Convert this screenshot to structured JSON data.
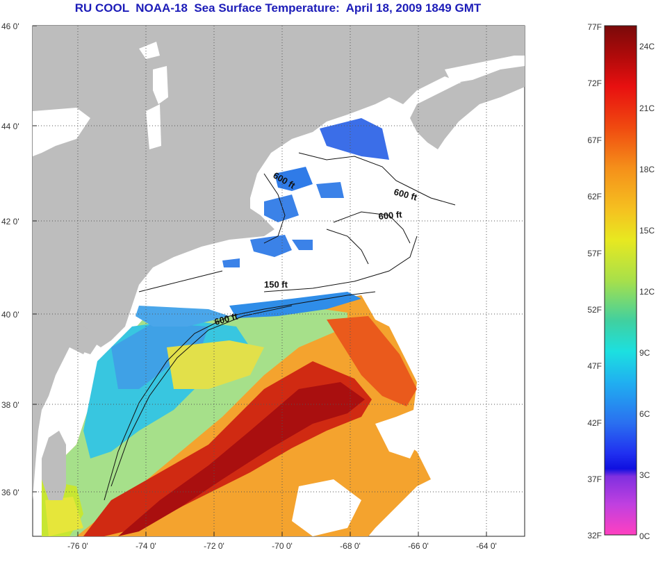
{
  "title": "RU COOL  NOAA-18  Sea Surface Temperature:  April 18, 2009 1849 GMT",
  "map": {
    "lat_ticks": [
      "46 0'",
      "44 0'",
      "42 0'",
      "40 0'",
      "38 0'",
      "36 0'"
    ],
    "lon_ticks": [
      "-76 0'",
      "-74 0'",
      "-72 0'",
      "-70 0'",
      "-68 0'",
      "-66 0'",
      "-64 0'"
    ],
    "contour_labels": [
      "600 ft",
      "600 ft",
      "600 ft",
      "150 ft",
      "600 ft"
    ],
    "colors": {
      "land": "#bdbdbd",
      "no_data": "#ffffff",
      "grid": "#555555"
    }
  },
  "colorbar": {
    "fahrenheit": [
      "77F",
      "72F",
      "67F",
      "62F",
      "57F",
      "52F",
      "47F",
      "42F",
      "37F",
      "32F"
    ],
    "celsius": [
      "24C",
      "21C",
      "18C",
      "15C",
      "12C",
      "9C",
      "6C",
      "3C",
      "0C"
    ]
  }
}
